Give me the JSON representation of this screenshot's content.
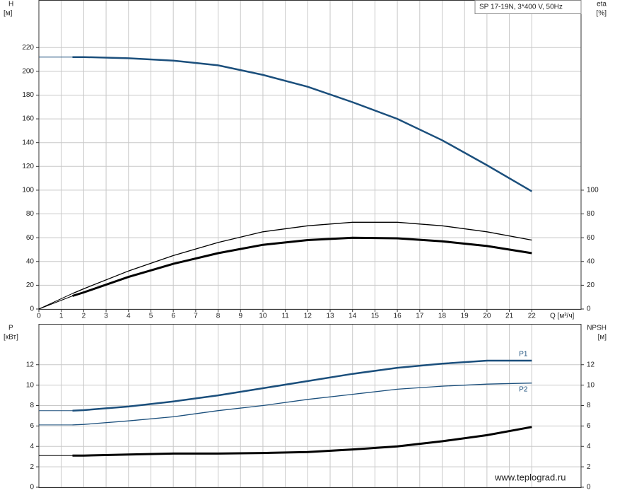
{
  "chart_data": [
    {
      "type": "line",
      "title": "SP 17-19N, 3*400 V, 50Hz",
      "ylabel": "H",
      "yunit": "[м]",
      "y2label": "eta",
      "y2unit": "[%]",
      "xlabel": "Q [м³/ч]",
      "x": [
        0,
        1.5,
        2,
        4,
        6,
        8,
        10,
        12,
        14,
        16,
        18,
        20,
        22
      ],
      "xlim": [
        0,
        24.2
      ],
      "xticks": [
        0,
        1,
        2,
        3,
        4,
        5,
        6,
        7,
        8,
        9,
        10,
        11,
        12,
        13,
        14,
        15,
        16,
        17,
        18,
        19,
        20,
        21,
        22
      ],
      "ylim": [
        0,
        260
      ],
      "yticks": [
        0,
        20,
        40,
        60,
        80,
        100,
        120,
        140,
        160,
        180,
        200,
        220
      ],
      "y2lim": [
        0,
        260
      ],
      "y2ticks": [
        0,
        20,
        40,
        60,
        80,
        100
      ],
      "grid": true,
      "series": [
        {
          "color": "#1b4f7c",
          "values": [
            212,
            212,
            212,
            211,
            209,
            205,
            197,
            187,
            174,
            160,
            142,
            121,
            99
          ]
        },
        {
          "color": "#000000",
          "axis": "y2",
          "values": [
            0,
            13,
            17,
            32,
            45,
            56,
            65,
            70,
            73,
            73,
            70,
            65,
            58
          ]
        },
        {
          "color": "#000000",
          "axis": "y2",
          "values": [
            0,
            11,
            14,
            27,
            38,
            47,
            54,
            58,
            60,
            59.5,
            57,
            53,
            47
          ]
        }
      ]
    },
    {
      "type": "line",
      "ylabel": "P",
      "yunit": "[кВт]",
      "y2label": "NPSH",
      "y2unit": "[м]",
      "x": [
        0,
        1.5,
        2,
        4,
        6,
        8,
        10,
        12,
        14,
        16,
        18,
        20,
        22
      ],
      "xlim": [
        0,
        24.2
      ],
      "ylim": [
        0,
        16
      ],
      "yticks": [
        0,
        2,
        4,
        6,
        8,
        10,
        12
      ],
      "y2lim": [
        0,
        16
      ],
      "y2ticks": [
        0,
        2,
        4,
        6,
        8,
        10,
        12
      ],
      "grid": true,
      "series": [
        {
          "name": "P1",
          "color": "#1b4f7c",
          "values": [
            7.5,
            7.5,
            7.55,
            7.9,
            8.4,
            9.0,
            9.7,
            10.4,
            11.1,
            11.7,
            12.1,
            12.4,
            12.4
          ]
        },
        {
          "name": "P2",
          "color": "#1b4f7c",
          "values": [
            6.1,
            6.1,
            6.15,
            6.5,
            6.9,
            7.5,
            8.0,
            8.6,
            9.1,
            9.6,
            9.9,
            10.1,
            10.2
          ]
        },
        {
          "color": "#000000",
          "axis": "y2",
          "values": [
            3.1,
            3.1,
            3.1,
            3.2,
            3.3,
            3.3,
            3.35,
            3.45,
            3.7,
            4.0,
            4.5,
            5.1,
            5.9
          ]
        }
      ]
    }
  ],
  "watermark": "www.teplograd.ru"
}
